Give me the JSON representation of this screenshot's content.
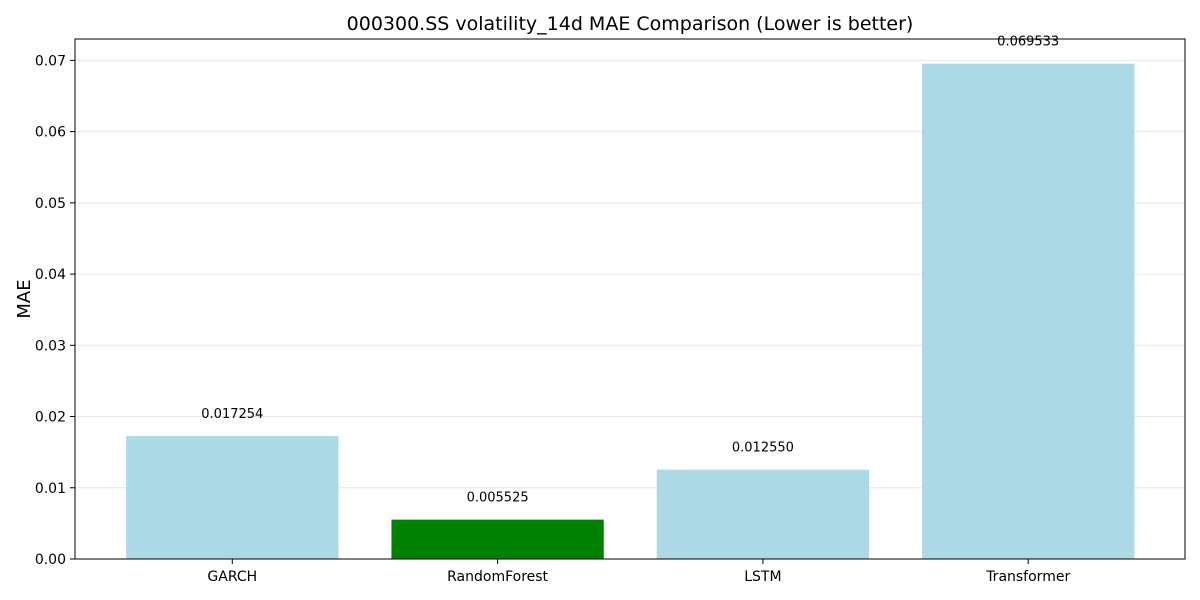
{
  "chart_data": {
    "type": "bar",
    "title": "000300.SS volatility_14d MAE Comparison (Lower is better)",
    "xlabel": "",
    "ylabel": "MAE",
    "categories": [
      "GARCH",
      "RandomForest",
      "LSTM",
      "Transformer"
    ],
    "values": [
      0.017254,
      0.005525,
      0.01255,
      0.069533
    ],
    "value_labels": [
      "0.017254",
      "0.005525",
      "0.012550",
      "0.069533"
    ],
    "bar_colors": [
      "#add8e6",
      "#008000",
      "#add8e6",
      "#add8e6"
    ],
    "ylim": [
      0,
      0.073
    ],
    "yticks": [
      0,
      0.01,
      0.02,
      0.03,
      0.04,
      0.05,
      0.06,
      0.07
    ],
    "ytick_labels": [
      "0.00",
      "0.01",
      "0.02",
      "0.03",
      "0.04",
      "0.05",
      "0.06",
      "0.07"
    ],
    "grid": "horizontal",
    "legend": "none"
  }
}
